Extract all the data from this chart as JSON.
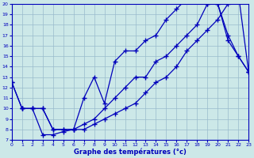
{
  "xlabel": "Graphe des températures (°c)",
  "bg_color": "#cce8e8",
  "line_color": "#0000bb",
  "grid_color": "#99bbcc",
  "xmin": 0,
  "xmax": 23,
  "ymin": 7,
  "ymax": 20,
  "line1_x": [
    0,
    1,
    2,
    3,
    4,
    5,
    6,
    7,
    8,
    9,
    10,
    11,
    12,
    13,
    14,
    15,
    16,
    17,
    18,
    19,
    20,
    21,
    22,
    23
  ],
  "line1_y": [
    12.5,
    10.0,
    10.0,
    10.0,
    8.0,
    8.0,
    8.0,
    8.5,
    9.0,
    10.0,
    11.0,
    12.0,
    13.0,
    13.0,
    14.5,
    15.0,
    16.0,
    17.0,
    18.0,
    20.0,
    20.0,
    17.0,
    15.0,
    13.5
  ],
  "line2_x": [
    0,
    1,
    2,
    3,
    4,
    5,
    6,
    7,
    8,
    9,
    10,
    11,
    12,
    13,
    14,
    15,
    16,
    17,
    18,
    19,
    20,
    21,
    22,
    23
  ],
  "line2_y": [
    12.5,
    10.0,
    10.0,
    10.0,
    8.0,
    8.0,
    8.0,
    11.0,
    13.0,
    10.5,
    14.5,
    15.5,
    15.5,
    16.5,
    17.0,
    18.5,
    19.5,
    20.5,
    20.5,
    20.0,
    20.0,
    16.5,
    15.0,
    13.5
  ],
  "line3_x": [
    1,
    2,
    3,
    4,
    5,
    6,
    7,
    8,
    9,
    10,
    11,
    12,
    13,
    14,
    15,
    16,
    17,
    18,
    19,
    20,
    21,
    22,
    23
  ],
  "line3_y": [
    10.0,
    10.0,
    7.5,
    7.5,
    7.8,
    8.0,
    8.0,
    8.5,
    9.0,
    9.5,
    10.0,
    10.5,
    11.5,
    12.5,
    13.0,
    14.0,
    15.5,
    16.5,
    17.5,
    18.5,
    20.0,
    21.0,
    13.5
  ]
}
